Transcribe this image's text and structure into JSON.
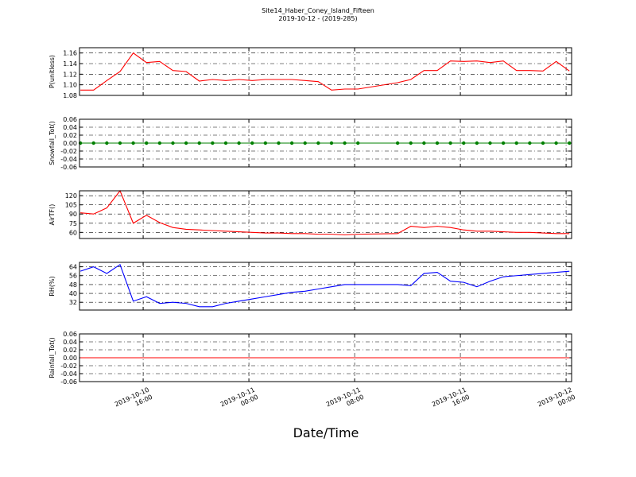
{
  "chart_data": {
    "type": "line",
    "title": "Site14_Haber_Coney_Island_Fifteen",
    "subtitle": "2019-10-12 - (2019-285)",
    "xlabel": "Date/Time",
    "grid": true,
    "xlim": [
      "2019-10-10 11:11",
      "2019-10-12 00:25"
    ],
    "xticks": [
      {
        "value": "2019-10-10 16:00",
        "label": [
          "2019-10-10",
          "16:00"
        ]
      },
      {
        "value": "2019-10-11 00:00",
        "label": [
          "2019-10-11",
          "00:00"
        ]
      },
      {
        "value": "2019-10-11 08:00",
        "label": [
          "2019-10-11",
          "08:00"
        ]
      },
      {
        "value": "2019-10-11 16:00",
        "label": [
          "2019-10-11",
          "16:00"
        ]
      },
      {
        "value": "2019-10-12 00:00",
        "label": [
          "2019-10-12",
          "00:00"
        ]
      }
    ],
    "x": [
      "2019-10-10 11:15",
      "2019-10-10 12:15",
      "2019-10-10 13:15",
      "2019-10-10 14:15",
      "2019-10-10 15:15",
      "2019-10-10 16:15",
      "2019-10-10 17:15",
      "2019-10-10 18:15",
      "2019-10-10 19:15",
      "2019-10-10 20:15",
      "2019-10-10 21:15",
      "2019-10-10 22:15",
      "2019-10-10 23:15",
      "2019-10-11 00:15",
      "2019-10-11 01:15",
      "2019-10-11 02:15",
      "2019-10-11 03:15",
      "2019-10-11 04:15",
      "2019-10-11 05:15",
      "2019-10-11 06:15",
      "2019-10-11 07:15",
      "2019-10-11 08:15",
      "2019-10-11 11:15",
      "2019-10-11 12:15",
      "2019-10-11 13:15",
      "2019-10-11 14:15",
      "2019-10-11 15:15",
      "2019-10-11 16:15",
      "2019-10-11 17:15",
      "2019-10-11 18:15",
      "2019-10-11 19:15",
      "2019-10-11 20:15",
      "2019-10-11 21:15",
      "2019-10-11 22:15",
      "2019-10-11 23:15",
      "2019-10-12 00:15"
    ],
    "panels": [
      {
        "ylabel": "P(unitless)",
        "ylim": [
          1.08,
          1.17
        ],
        "yticks": [
          1.08,
          {
            "value": 1.1,
            "label": "1.10"
          },
          1.12,
          1.14,
          1.16
        ],
        "series": [
          {
            "color": "#ff0000",
            "marker": false,
            "values": [
              1.09,
              1.09,
              1.108,
              1.125,
              1.16,
              1.142,
              1.144,
              1.127,
              1.125,
              1.107,
              1.11,
              1.108,
              1.11,
              1.108,
              1.11,
              1.11,
              1.11,
              1.108,
              1.106,
              1.09,
              1.092,
              1.092,
              1.104,
              1.11,
              1.127,
              1.127,
              1.145,
              1.144,
              1.145,
              1.142,
              1.145,
              1.127,
              1.127,
              1.126,
              1.144,
              1.126
            ]
          }
        ]
      },
      {
        "ylabel": "Snowfall_Tot()",
        "ylim": [
          -0.06,
          0.06
        ],
        "yticks": [
          -0.06,
          -0.04,
          -0.02,
          {
            "value": 0,
            "label": "0.00"
          },
          0.02,
          0.04,
          0.06
        ],
        "series": [
          {
            "color": "#008000",
            "marker": true,
            "values": [
              0,
              0,
              0,
              0,
              0,
              0,
              0,
              0,
              0,
              0,
              0,
              0,
              0,
              0,
              0,
              0,
              0,
              0,
              0,
              0,
              0,
              0,
              0,
              0,
              0,
              0,
              0,
              0,
              0,
              0,
              0,
              0,
              0,
              0,
              0,
              0
            ]
          }
        ]
      },
      {
        "ylabel": "AirTF()",
        "ylim": [
          50,
          128
        ],
        "yticks": [
          60,
          75,
          90,
          105,
          120
        ],
        "series": [
          {
            "color": "#ff0000",
            "marker": false,
            "values": [
              92,
              90,
              100,
              128,
              75,
              88,
              76,
              68,
              65,
              64,
              63,
              62,
              61,
              60,
              59,
              59,
              58,
              58,
              57,
              57,
              56,
              57,
              58,
              70,
              68,
              70,
              68,
              64,
              62,
              62,
              61,
              60,
              60,
              59,
              58,
              58
            ]
          }
        ]
      },
      {
        "ylabel": "RH(%)",
        "ylim": [
          25,
          68
        ],
        "yticks": [
          32,
          40,
          48,
          56,
          64
        ],
        "series": [
          {
            "color": "#0000ff",
            "marker": false,
            "values": [
              60,
              64,
              58,
              66,
              33,
              37,
              31,
              32,
              31,
              28,
              28,
              31,
              33,
              35,
              37,
              39,
              41,
              42,
              44,
              46,
              48,
              48,
              48,
              47,
              58,
              59,
              51,
              50,
              46,
              51,
              55,
              56,
              57,
              58,
              59,
              60
            ]
          }
        ]
      },
      {
        "ylabel": "Rainfall_Tot()",
        "ylim": [
          -0.06,
          0.06
        ],
        "yticks": [
          -0.06,
          -0.04,
          -0.02,
          {
            "value": 0,
            "label": "0.00"
          },
          0.02,
          0.04,
          0.06
        ],
        "series": [
          {
            "color": "#ff0000",
            "marker": false,
            "values": [
              0,
              0,
              0,
              0,
              0,
              0,
              0,
              0,
              0,
              0,
              0,
              0,
              0,
              0,
              0,
              0,
              0,
              0,
              0,
              0,
              0,
              0,
              0,
              0,
              0,
              0,
              0,
              0,
              0,
              0,
              0,
              0,
              0,
              0,
              0,
              0
            ]
          }
        ]
      }
    ]
  }
}
